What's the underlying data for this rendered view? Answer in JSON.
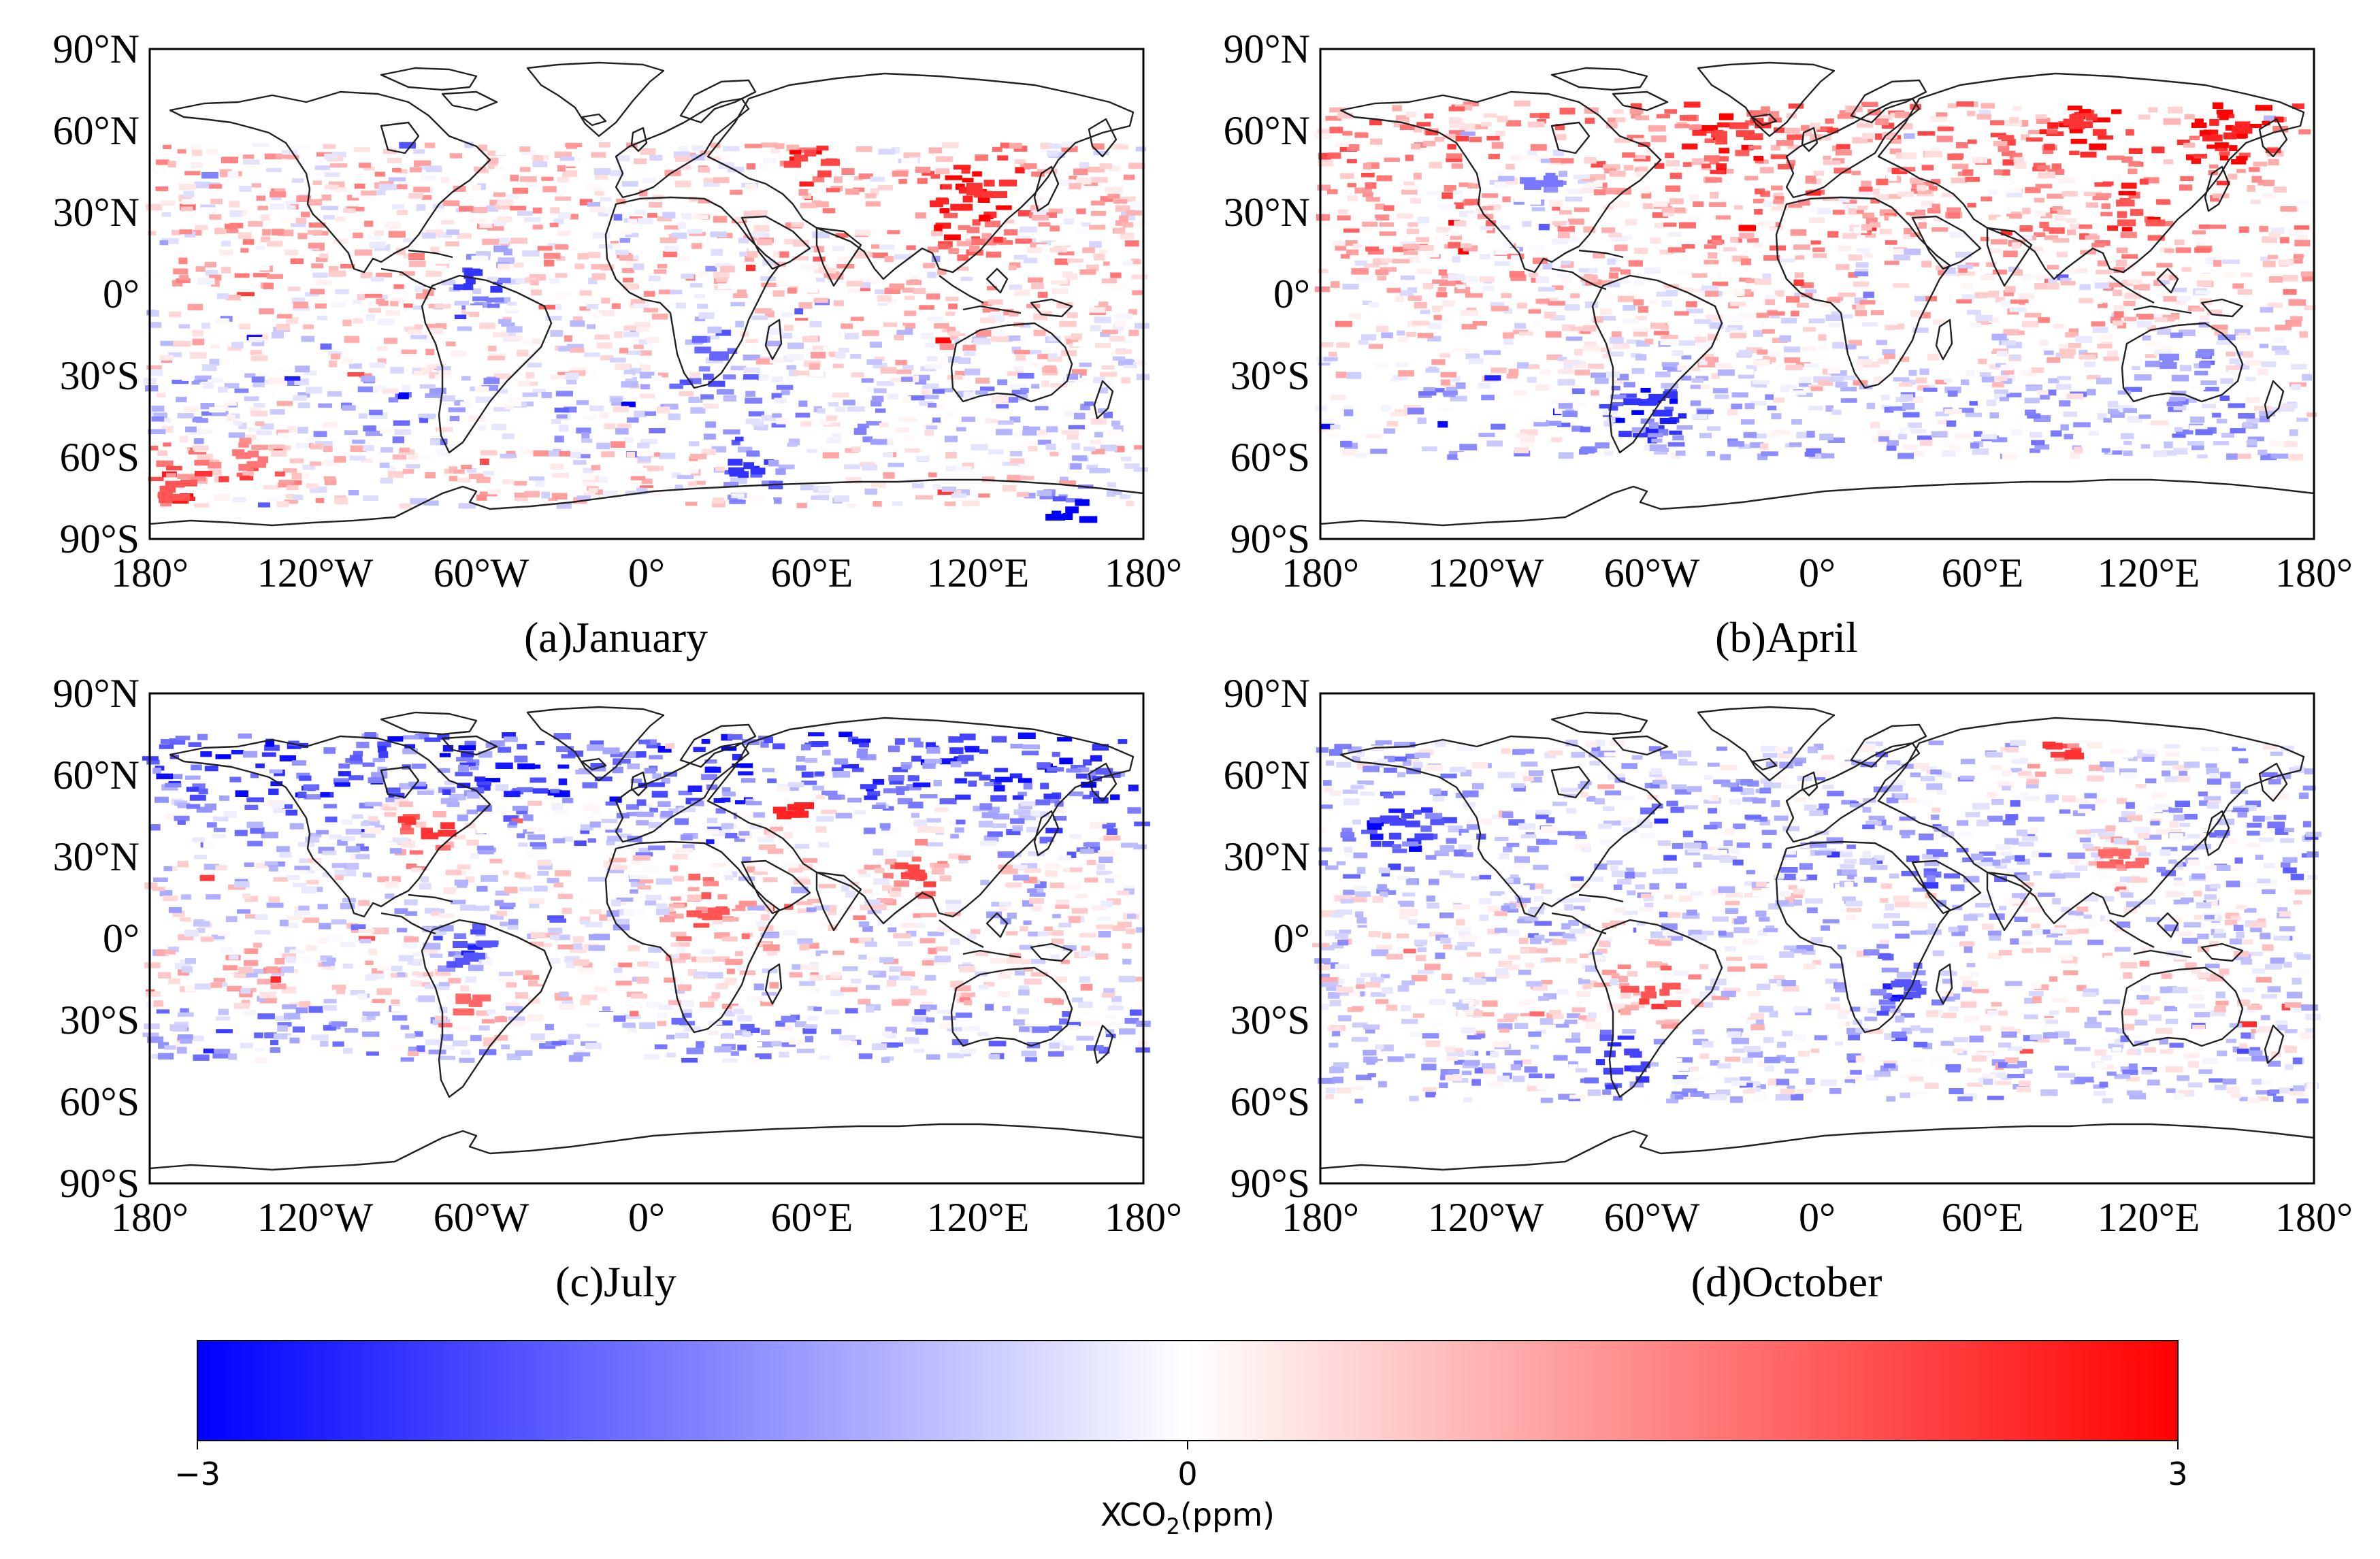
{
  "chart_data": [
    {
      "type": "heatmap",
      "panel": "a",
      "title": "(a)January",
      "x_ticks": [
        "180°",
        "120°W",
        "60°W",
        "0°",
        "60°E",
        "120°E",
        "180°"
      ],
      "y_ticks": [
        "90°N",
        "60°N",
        "30°N",
        "0°",
        "30°S",
        "60°S",
        "90°S"
      ],
      "xlim": [
        -180,
        180
      ],
      "ylim": [
        -90,
        90
      ],
      "bands": [
        {
          "lat": [
            40,
            55
          ],
          "value": 0.4
        },
        {
          "lat": [
            20,
            40
          ],
          "value": 0.5
        },
        {
          "lat": [
            -10,
            20
          ],
          "value": 0.6
        },
        {
          "lat": [
            -30,
            -10
          ],
          "value": 0.2
        },
        {
          "lat": [
            -55,
            -30
          ],
          "value": -0.6
        },
        {
          "lat": [
            -78,
            -55
          ],
          "value": 0.3
        }
      ],
      "hotspots": [
        {
          "lon": 112,
          "lat": 35,
          "value": 2.6
        },
        {
          "lon": 125,
          "lat": 40,
          "value": 2.4
        },
        {
          "lon": 60,
          "lat": 48,
          "value": 2.2
        },
        {
          "lon": -62,
          "lat": 5,
          "value": -2.4
        },
        {
          "lon": -170,
          "lat": -72,
          "value": 2.0
        },
        {
          "lon": 155,
          "lat": -80,
          "value": -3.0
        },
        {
          "lon": 40,
          "lat": -65,
          "value": -2.4
        },
        {
          "lon": 25,
          "lat": -20,
          "value": -1.8
        },
        {
          "lon": -140,
          "lat": -62,
          "value": 1.6
        }
      ]
    },
    {
      "type": "heatmap",
      "panel": "b",
      "title": "(b)April",
      "x_ticks": [
        "180°",
        "120°W",
        "60°W",
        "0°",
        "60°E",
        "120°E",
        "180°"
      ],
      "y_ticks": [
        "90°N",
        "60°N",
        "30°N",
        "0°",
        "30°S",
        "60°S",
        "90°S"
      ],
      "xlim": [
        -180,
        180
      ],
      "ylim": [
        -90,
        90
      ],
      "bands": [
        {
          "lat": [
            45,
            70
          ],
          "value": 1.2
        },
        {
          "lat": [
            15,
            45
          ],
          "value": 0.8
        },
        {
          "lat": [
            -15,
            15
          ],
          "value": 0.5
        },
        {
          "lat": [
            -35,
            -15
          ],
          "value": 0.1
        },
        {
          "lat": [
            -60,
            -35
          ],
          "value": -0.6
        }
      ],
      "hotspots": [
        {
          "lon": -100,
          "lat": 40,
          "value": -1.6
        },
        {
          "lon": -60,
          "lat": -40,
          "value": -2.4
        },
        {
          "lon": 135,
          "lat": -25,
          "value": -1.4
        },
        {
          "lon": 100,
          "lat": 62,
          "value": 2.4
        },
        {
          "lon": 150,
          "lat": 60,
          "value": 2.6
        },
        {
          "lon": -30,
          "lat": 58,
          "value": 2.2
        },
        {
          "lon": 115,
          "lat": 30,
          "value": 2.0
        }
      ]
    },
    {
      "type": "heatmap",
      "panel": "c",
      "title": "(c)July",
      "x_ticks": [
        "180°",
        "120°W",
        "60°W",
        "0°",
        "60°E",
        "120°E",
        "180°"
      ],
      "y_ticks": [
        "90°N",
        "60°N",
        "30°N",
        "0°",
        "30°S",
        "60°S",
        "90°S"
      ],
      "xlim": [
        -180,
        180
      ],
      "ylim": [
        -90,
        90
      ],
      "bands": [
        {
          "lat": [
            50,
            75
          ],
          "value": -2.0
        },
        {
          "lat": [
            30,
            50
          ],
          "value": -0.9
        },
        {
          "lat": [
            0,
            30
          ],
          "value": -0.2
        },
        {
          "lat": [
            -25,
            0
          ],
          "value": 0.2
        },
        {
          "lat": [
            -45,
            -25
          ],
          "value": -0.9
        }
      ],
      "hotspots": [
        {
          "lon": -80,
          "lat": 40,
          "value": 2.4
        },
        {
          "lon": 55,
          "lat": 45,
          "value": 2.6
        },
        {
          "lon": 100,
          "lat": 25,
          "value": 2.2
        },
        {
          "lon": -60,
          "lat": -25,
          "value": 1.8
        },
        {
          "lon": -65,
          "lat": -5,
          "value": -2.0
        },
        {
          "lon": 20,
          "lat": 12,
          "value": 2.0
        }
      ]
    },
    {
      "type": "heatmap",
      "panel": "d",
      "title": "(d)October",
      "x_ticks": [
        "180°",
        "120°W",
        "60°W",
        "0°",
        "60°E",
        "120°E",
        "180°"
      ],
      "y_ticks": [
        "90°N",
        "60°N",
        "30°N",
        "0°",
        "30°S",
        "60°S",
        "90°S"
      ],
      "xlim": [
        -180,
        180
      ],
      "ylim": [
        -90,
        90
      ],
      "bands": [
        {
          "lat": [
            50,
            72
          ],
          "value": -0.6
        },
        {
          "lat": [
            20,
            50
          ],
          "value": -0.9
        },
        {
          "lat": [
            -10,
            20
          ],
          "value": -0.3
        },
        {
          "lat": [
            -35,
            -10
          ],
          "value": 0.0
        },
        {
          "lat": [
            -60,
            -35
          ],
          "value": -0.6
        }
      ],
      "hotspots": [
        {
          "lon": -150,
          "lat": 40,
          "value": -2.2
        },
        {
          "lon": -60,
          "lat": -20,
          "value": 2.0
        },
        {
          "lon": 90,
          "lat": 70,
          "value": 2.4
        },
        {
          "lon": 110,
          "lat": 30,
          "value": 1.8
        },
        {
          "lon": 30,
          "lat": -20,
          "value": -2.0
        },
        {
          "lon": -70,
          "lat": -45,
          "value": -2.2
        }
      ]
    }
  ],
  "colorbar": {
    "min": -3,
    "mid": 0,
    "max": 3,
    "tick_labels": [
      "−3",
      "0",
      "3"
    ],
    "label": "XCO",
    "label_sub": "2",
    "label_unit": "(ppm)",
    "colors": {
      "low": "#0000ff",
      "mid": "#ffffff",
      "high": "#ff0000"
    }
  }
}
